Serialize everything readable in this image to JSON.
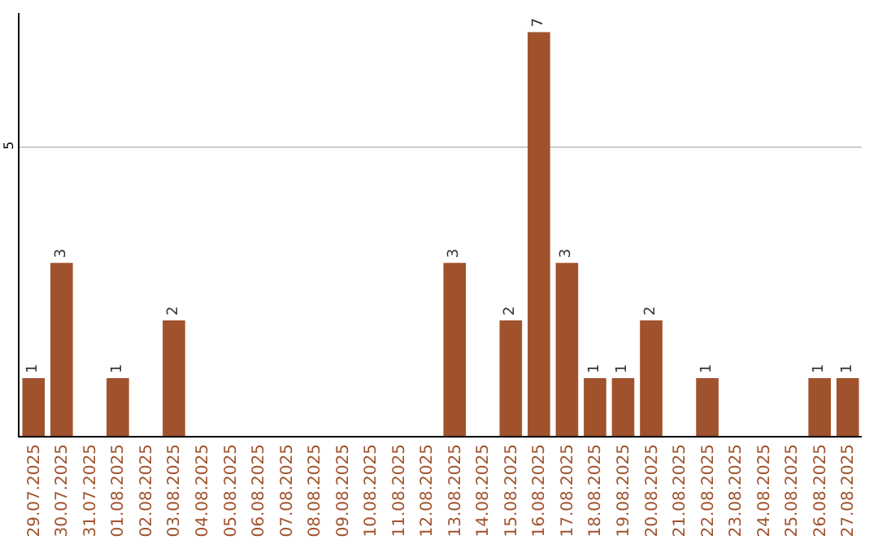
{
  "chart_data": {
    "type": "bar",
    "categories": [
      "29.07.2025",
      "30.07.2025",
      "31.07.2025",
      "01.08.2025",
      "02.08.2025",
      "03.08.2025",
      "04.08.2025",
      "05.08.2025",
      "06.08.2025",
      "07.08.2025",
      "08.08.2025",
      "09.08.2025",
      "10.08.2025",
      "11.08.2025",
      "12.08.2025",
      "13.08.2025",
      "14.08.2025",
      "15.08.2025",
      "16.08.2025",
      "17.08.2025",
      "18.08.2025",
      "19.08.2025",
      "20.08.2025",
      "21.08.2025",
      "22.08.2025",
      "23.08.2025",
      "24.08.2025",
      "25.08.2025",
      "26.08.2025",
      "27.08.2025"
    ],
    "values": [
      1,
      3,
      0,
      1,
      0,
      2,
      0,
      0,
      0,
      0,
      0,
      0,
      0,
      0,
      0,
      3,
      0,
      2,
      7,
      3,
      1,
      1,
      2,
      0,
      1,
      0,
      0,
      0,
      1,
      1
    ],
    "value_labels": [
      "1",
      "3",
      null,
      "1",
      null,
      "2",
      null,
      null,
      null,
      null,
      null,
      null,
      null,
      null,
      null,
      "3",
      null,
      "2",
      "7",
      "3",
      "1",
      "1",
      "2",
      null,
      "1",
      null,
      null,
      null,
      "1",
      "1"
    ],
    "color": "#a0522d",
    "ylim": [
      0,
      7.33
    ],
    "yticks": [
      5
    ],
    "grid": "y"
  }
}
